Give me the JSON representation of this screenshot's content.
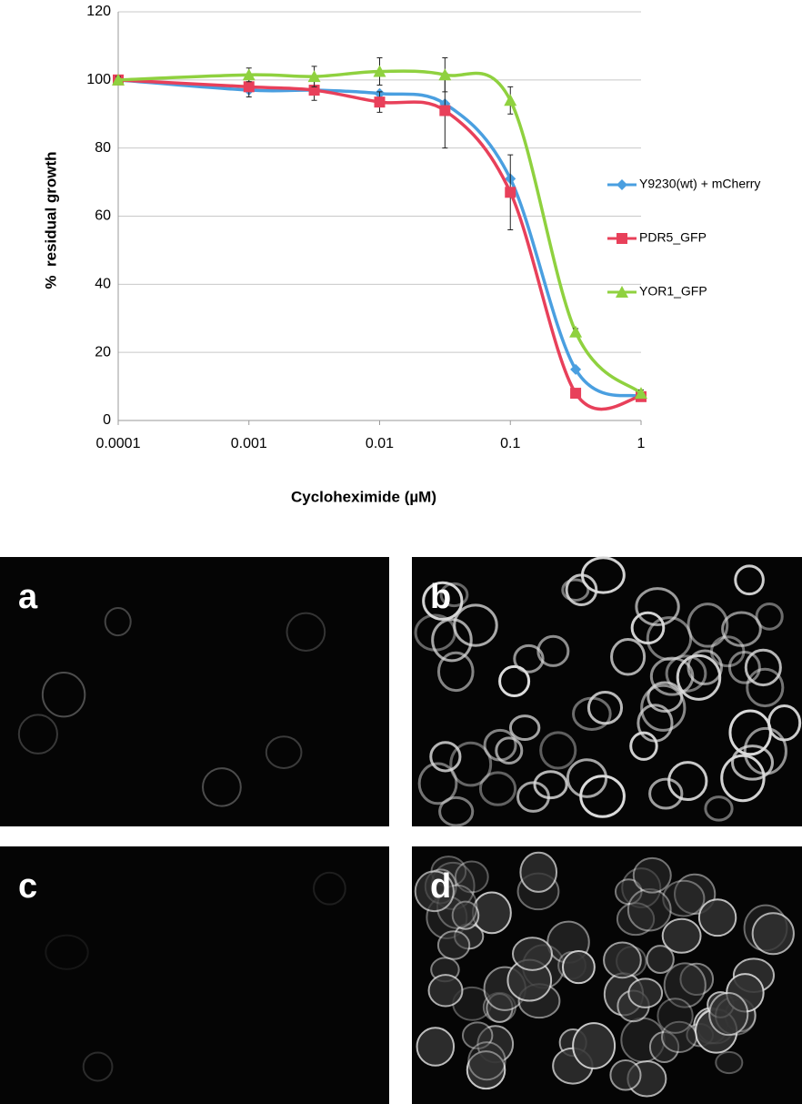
{
  "chart_data": {
    "type": "line",
    "x": [
      0.0001,
      0.001,
      0.00316,
      0.01,
      0.0316,
      0.1,
      0.316,
      1
    ],
    "xlim": [
      0.0001,
      1
    ],
    "xticks": [
      0.0001,
      0.001,
      0.01,
      0.1,
      1
    ],
    "xscale": "log",
    "ylim": [
      0,
      120
    ],
    "yticks": [
      0,
      20,
      40,
      60,
      80,
      100,
      120
    ],
    "grid": true,
    "xlabel": "Cycloheximide (µM)",
    "ylabel": "%  residual growth",
    "legend": "right",
    "series": [
      {
        "name": "Y9230(wt) + mCherry",
        "color": "#4a9fe0",
        "marker": "diamond",
        "values": [
          100,
          97,
          97,
          96,
          93,
          71,
          15,
          7
        ]
      },
      {
        "name": "PDR5_GFP",
        "color": "#e8405a",
        "marker": "square",
        "values": [
          100,
          98,
          97,
          93.5,
          91,
          67,
          8,
          7
        ],
        "errors": [
          1,
          3,
          3,
          3,
          11,
          11,
          1,
          1
        ]
      },
      {
        "name": "YOR1_GFP",
        "color": "#8fd13f",
        "marker": "triangle",
        "values": [
          100,
          101.5,
          101,
          102.5,
          101.5,
          94,
          26,
          8
        ],
        "errors": [
          1,
          2,
          3,
          4,
          5,
          4,
          1,
          1
        ]
      }
    ]
  },
  "panels": [
    {
      "label": "a"
    },
    {
      "label": "b"
    },
    {
      "label": "c"
    },
    {
      "label": "d"
    }
  ]
}
